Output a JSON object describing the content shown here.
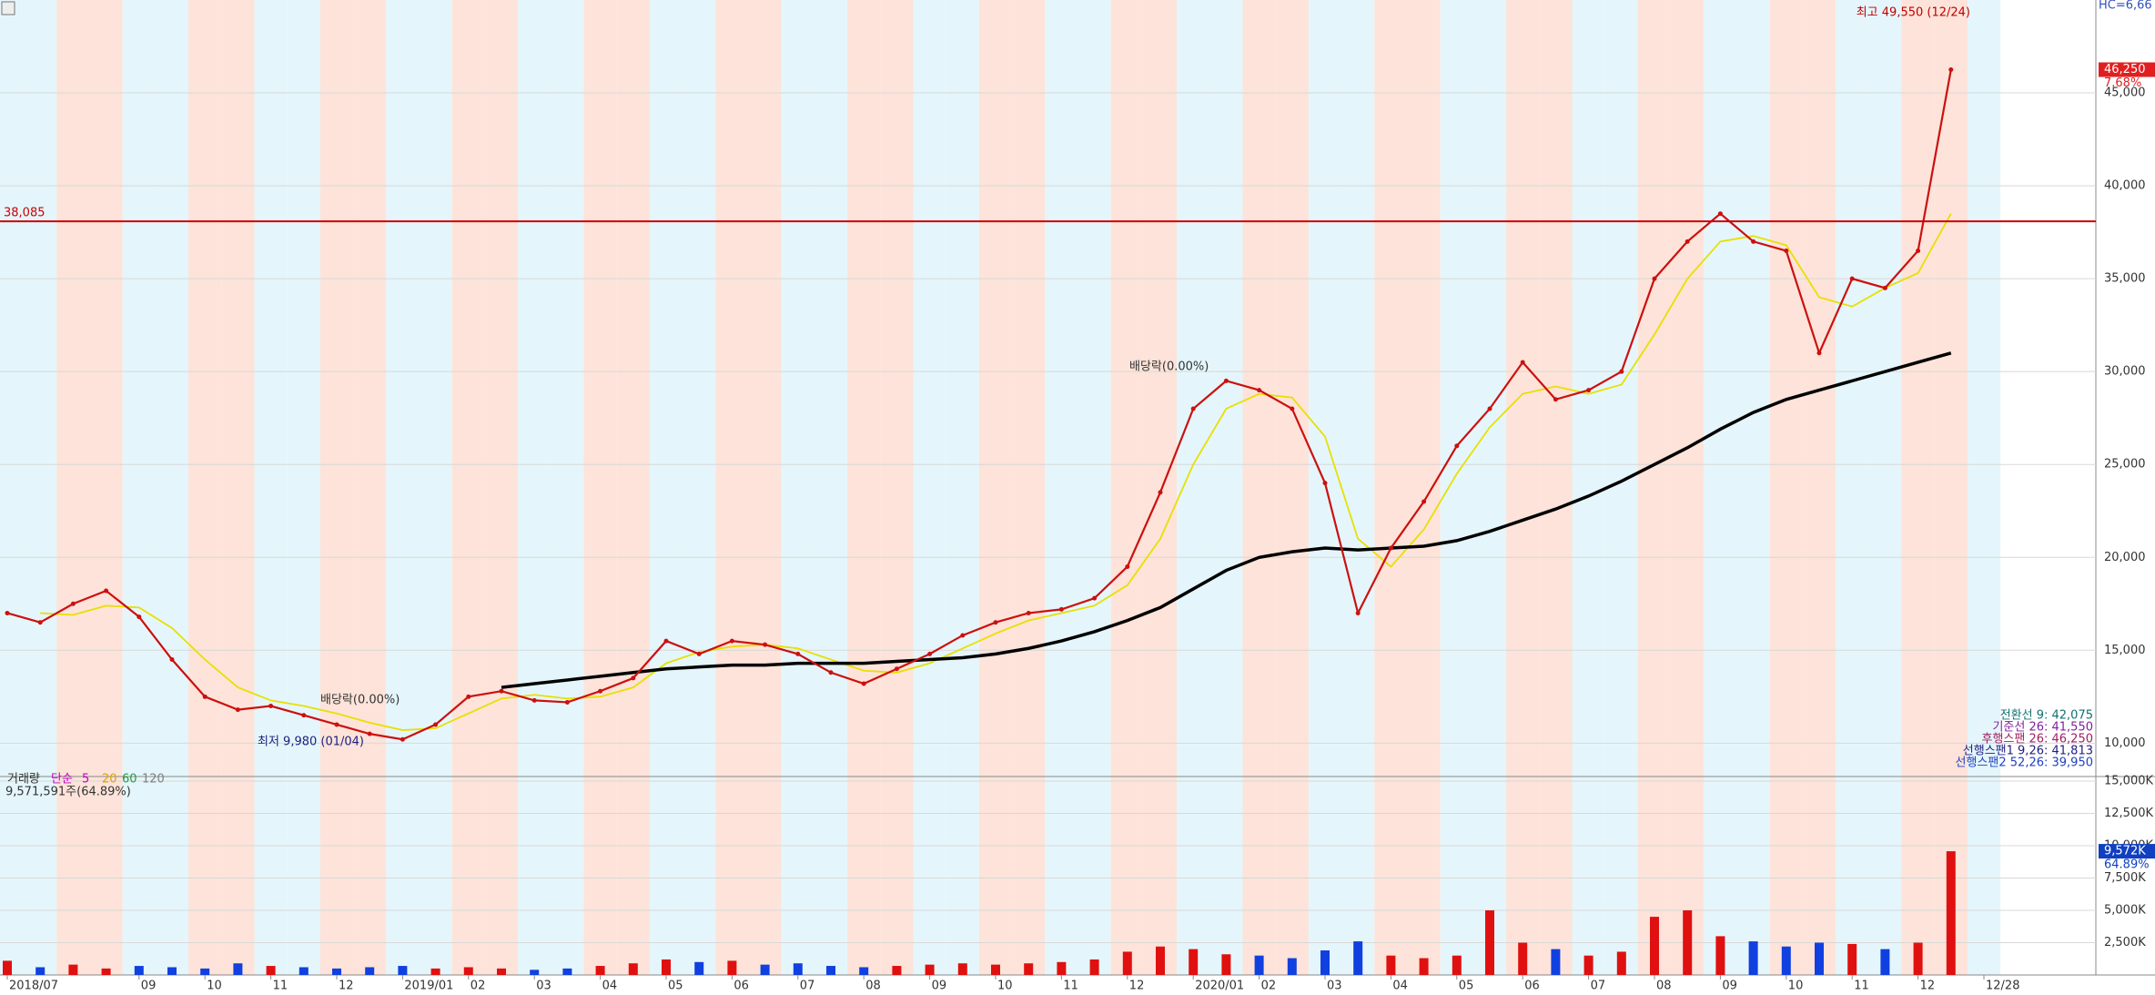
{
  "chart_data": [
    {
      "type": "line",
      "values": [
        17000,
        16500,
        17500,
        18200,
        16800,
        14500,
        12500,
        11800,
        12000,
        11500,
        11000,
        10500,
        10200,
        11000,
        12500,
        12800,
        12300,
        12200,
        12800,
        13500,
        15500,
        14800,
        15500,
        15300,
        14800,
        13800,
        13200,
        14000,
        14800,
        15800,
        16500,
        17000,
        17200,
        17800,
        19500,
        23500,
        28000,
        29500,
        29000,
        28000,
        24000,
        17000,
        20500,
        23000,
        26000,
        28000,
        30500,
        28500,
        29000,
        30000,
        35000,
        37000,
        38500,
        37000,
        36500,
        31000,
        35000,
        34500,
        36500,
        46250,
        null
      ],
      "color": "#cc1010",
      "series": [
        {
          "name": "20",
          "color": "#e8e000",
          "values": [
            null,
            17000,
            16900,
            17400,
            17300,
            16200,
            14500,
            13000,
            12300,
            12000,
            11600,
            11100,
            10700,
            10800,
            11600,
            12400,
            12600,
            12400,
            12500,
            13000,
            14300,
            14900,
            15200,
            15300,
            15100,
            14500,
            13900,
            13800,
            14300,
            15100,
            15900,
            16600,
            17000,
            17400,
            18500,
            21000,
            25000,
            28000,
            28800,
            28600,
            26500,
            21000,
            19500,
            21500,
            24500,
            27000,
            28800,
            29200,
            28800,
            29300,
            32000,
            35000,
            37000,
            37300,
            36800,
            34000,
            33500,
            34500,
            35300,
            38500,
            null
          ]
        },
        {
          "name": "120",
          "color": "#000000",
          "values": [
            null,
            null,
            null,
            null,
            null,
            null,
            null,
            null,
            null,
            null,
            null,
            null,
            null,
            null,
            null,
            13000,
            13200,
            13400,
            13600,
            13800,
            14000,
            14100,
            14200,
            14200,
            14300,
            14300,
            14300,
            14400,
            14500,
            14600,
            14800,
            15100,
            15500,
            16000,
            16600,
            17300,
            18300,
            19300,
            20000,
            20300,
            20500,
            20400,
            20500,
            20600,
            20900,
            21400,
            22000,
            22600,
            23300,
            24100,
            25000,
            25900,
            26900,
            27800,
            28500,
            29000,
            29500,
            30000,
            30500,
            31000,
            null
          ]
        }
      ],
      "ylim": [
        8400,
        50000
      ],
      "yticks": [
        {
          "value": 10000,
          "label": "10,000"
        },
        {
          "value": 15000,
          "label": "15,000"
        },
        {
          "value": 20000,
          "label": "20,000"
        },
        {
          "value": 25000,
          "label": "25,000"
        },
        {
          "value": 30000,
          "label": "30,000"
        },
        {
          "value": 35000,
          "label": "35,000"
        },
        {
          "value": 40000,
          "label": "40,000"
        },
        {
          "value": 45000,
          "label": "45,000"
        }
      ],
      "grid": true,
      "reference_line": {
        "value": 38085,
        "label": "38,085",
        "color": "#cc0000"
      },
      "last_price": {
        "value": 46250,
        "label": "46,250"
      },
      "change": "7.68%",
      "corner_text": "HC=6,66",
      "high_note": "최고 49,550 (12/24)",
      "low_note": "최저 9,980 (01/04)",
      "dividend_notes": [
        "배당락(0.00%)",
        "배당락(0.00%)"
      ],
      "ichimoku_info": [
        "전환선 9: 42,075",
        "기준선 26: 41,550",
        "후행스팬 26: 46,250",
        "선행스팬1 9,26: 41,813",
        "선행스팬2 52,26: 39,950"
      ]
    },
    {
      "type": "bar",
      "title": "거래량",
      "legend_title": "단순",
      "legend": [
        {
          "name": "5",
          "color": "#c000c0"
        },
        {
          "name": "20",
          "color": "#e0a000"
        },
        {
          "name": "60",
          "color": "#20a040"
        },
        {
          "name": "120",
          "color": "#808080"
        }
      ],
      "info": "9,571,591주(64.89%)",
      "categories": [
        "2018/07",
        null,
        null,
        null,
        "09",
        null,
        "10",
        null,
        "11",
        null,
        "12",
        null,
        "2019/01",
        null,
        "02",
        null,
        "03",
        null,
        "04",
        null,
        "05",
        null,
        "06",
        null,
        "07",
        null,
        "08",
        null,
        "09",
        null,
        "10",
        null,
        "11",
        null,
        "12",
        null,
        "2020/01",
        null,
        "02",
        null,
        "03",
        null,
        "04",
        null,
        "05",
        null,
        "06",
        null,
        "07",
        null,
        "08",
        null,
        "09",
        null,
        "10",
        null,
        "11",
        null,
        "12",
        null,
        "12/28"
      ],
      "values": [
        1100000,
        600000,
        800000,
        500000,
        700000,
        600000,
        500000,
        900000,
        700000,
        600000,
        500000,
        600000,
        700000,
        500000,
        600000,
        500000,
        400000,
        500000,
        700000,
        900000,
        1200000,
        1000000,
        1100000,
        800000,
        900000,
        700000,
        600000,
        700000,
        800000,
        900000,
        800000,
        900000,
        1000000,
        1200000,
        1800000,
        2200000,
        2000000,
        1600000,
        1500000,
        1300000,
        1900000,
        2600000,
        1500000,
        1300000,
        1500000,
        5000000,
        2500000,
        2000000,
        1500000,
        1800000,
        4500000,
        5000000,
        3000000,
        2600000,
        2200000,
        2500000,
        2400000,
        2000000,
        2500000,
        9571591,
        null
      ],
      "up_color": "#e01010",
      "down_color": "#1040e0",
      "ylim": [
        0,
        15000000
      ],
      "yticks": [
        {
          "value": 2500000,
          "label": "2,500K"
        },
        {
          "value": 5000000,
          "label": "5,000K"
        },
        {
          "value": 7500000,
          "label": "7,500K"
        },
        {
          "value": 10000000,
          "label": "10,000K"
        },
        {
          "value": 12500000,
          "label": "12,500K"
        },
        {
          "value": 15000000,
          "label": "15,000K"
        }
      ],
      "last_volume": {
        "value": 9571591,
        "label": "9,572K"
      },
      "ratio": "64.89%"
    }
  ]
}
